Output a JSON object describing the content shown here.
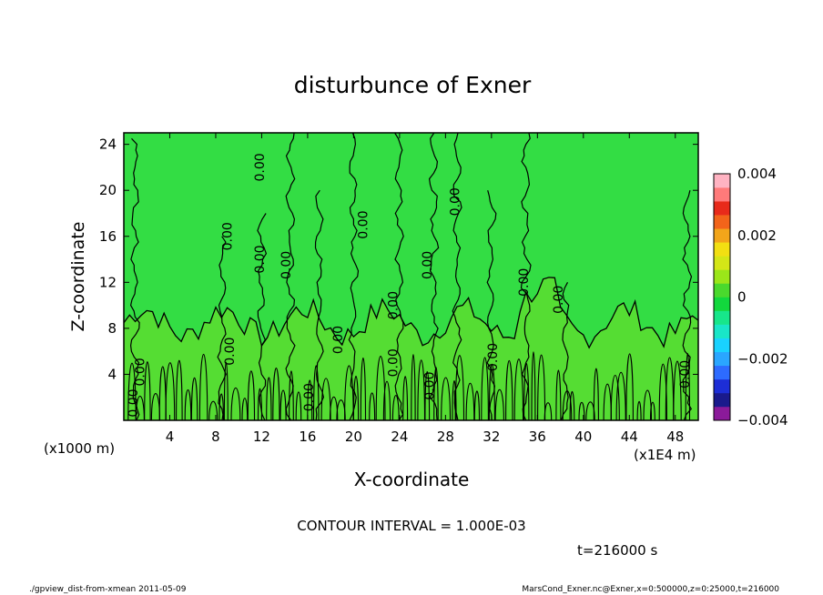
{
  "chart_data": {
    "type": "heatmap",
    "title": "disturbunce of Exner",
    "xlabel": "X-coordinate",
    "ylabel": "Z-coordinate",
    "x_unit": "(x1E4 m)",
    "y_unit": "(x1000 m)",
    "xlim": [
      0,
      50
    ],
    "ylim": [
      0,
      25
    ],
    "x_ticks": [
      4,
      8,
      12,
      16,
      20,
      24,
      28,
      32,
      36,
      40,
      44,
      48
    ],
    "y_ticks": [
      4,
      8,
      12,
      16,
      20,
      24
    ],
    "contour_label": "0.00",
    "contour_interval_text": "CONTOUR INTERVAL = 1.000E-03",
    "time_text": "t=216000 s",
    "colorbar": {
      "min": -0.004,
      "max": 0.004,
      "tick_labels": [
        "0.004",
        "0.002",
        "0",
        "−0.002",
        "−0.004"
      ],
      "tick_values": [
        0.004,
        0.002,
        0,
        -0.002,
        -0.004
      ],
      "colors": [
        "#8b1a9a",
        "#1a1a8c",
        "#1d2ed6",
        "#2d6bff",
        "#2aa6ff",
        "#19d2ff",
        "#19e6c8",
        "#17e68a",
        "#12d83d",
        "#4ad92d",
        "#9be619",
        "#d4e617",
        "#f2df12",
        "#f2a51a",
        "#f2641a",
        "#e82a1a",
        "#ff7a7a",
        "#ffb3c2"
      ]
    },
    "field_colors": {
      "background": "#33dd44",
      "lower": "#55dd33"
    },
    "contour_columns_x": [
      1,
      8.5,
      12,
      14.5,
      17,
      20,
      24,
      27,
      29,
      32,
      35,
      38.5,
      49
    ]
  },
  "footer": {
    "left": "./gpview_dist-from-xmean  2011-05-09",
    "right": "MarsCond_Exner.nc@Exner,x=0:500000,z=0:25000,t=216000"
  }
}
